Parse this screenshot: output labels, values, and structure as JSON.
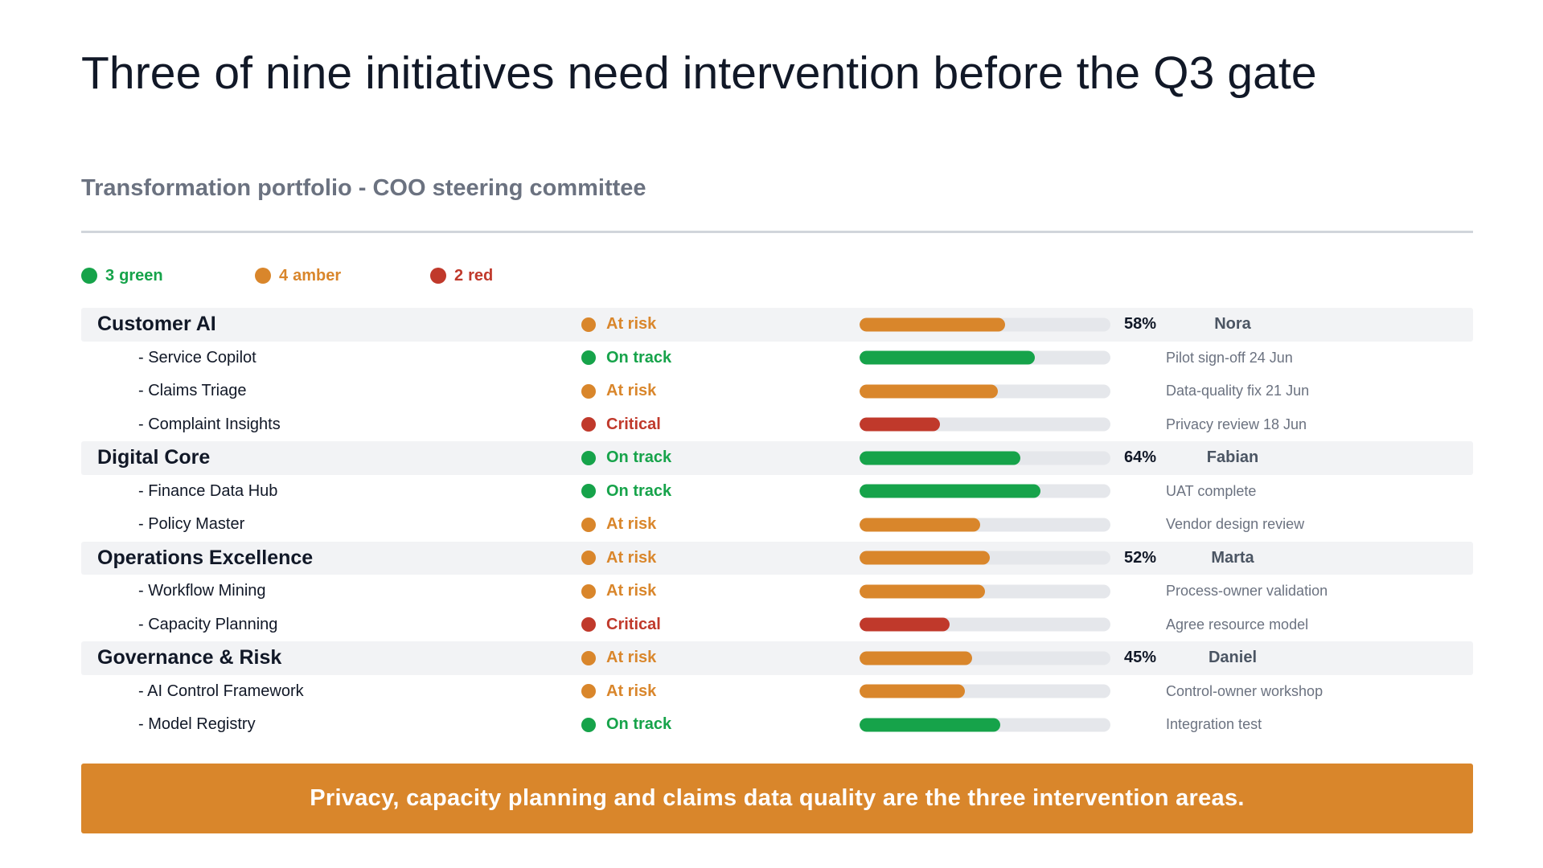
{
  "title": "Three of nine initiatives need intervention before the Q3 gate",
  "subtitle": "Transformation portfolio - COO steering committee",
  "colors": {
    "green": "#16a34a",
    "amber": "#d9862b",
    "red": "#c0392b",
    "track": "#e5e7eb"
  },
  "legend": [
    {
      "count": "3",
      "label": "green",
      "status": "green"
    },
    {
      "count": "4",
      "label": "amber",
      "status": "amber"
    },
    {
      "count": "2",
      "label": "red",
      "status": "red"
    }
  ],
  "rows": [
    {
      "type": "group",
      "name": "Customer AI",
      "status": "At risk",
      "rag": "amber",
      "progress": 0.58,
      "percent": "58%",
      "owner": "Nora"
    },
    {
      "type": "child",
      "name": "- Service Copilot",
      "status": "On track",
      "rag": "green",
      "progress": 0.7,
      "note": "Pilot sign-off 24 Jun"
    },
    {
      "type": "child",
      "name": "- Claims Triage",
      "status": "At risk",
      "rag": "amber",
      "progress": 0.55,
      "note": "Data-quality fix 21 Jun"
    },
    {
      "type": "child",
      "name": "- Complaint Insights",
      "status": "Critical",
      "rag": "red",
      "progress": 0.32,
      "note": "Privacy review 18 Jun"
    },
    {
      "type": "group",
      "name": "Digital Core",
      "status": "On track",
      "rag": "green",
      "progress": 0.64,
      "percent": "64%",
      "owner": "Fabian"
    },
    {
      "type": "child",
      "name": "- Finance Data Hub",
      "status": "On track",
      "rag": "green",
      "progress": 0.72,
      "note": "UAT complete"
    },
    {
      "type": "child",
      "name": "- Policy Master",
      "status": "At risk",
      "rag": "amber",
      "progress": 0.48,
      "note": "Vendor design review"
    },
    {
      "type": "group",
      "name": "Operations Excellence",
      "status": "At risk",
      "rag": "amber",
      "progress": 0.52,
      "percent": "52%",
      "owner": "Marta"
    },
    {
      "type": "child",
      "name": "- Workflow Mining",
      "status": "At risk",
      "rag": "amber",
      "progress": 0.5,
      "note": "Process-owner validation"
    },
    {
      "type": "child",
      "name": "- Capacity Planning",
      "status": "Critical",
      "rag": "red",
      "progress": 0.36,
      "note": "Agree resource model"
    },
    {
      "type": "group",
      "name": "Governance & Risk",
      "status": "At risk",
      "rag": "amber",
      "progress": 0.45,
      "percent": "45%",
      "owner": "Daniel"
    },
    {
      "type": "child",
      "name": "- AI Control Framework",
      "status": "At risk",
      "rag": "amber",
      "progress": 0.42,
      "note": "Control-owner workshop"
    },
    {
      "type": "child",
      "name": "- Model Registry",
      "status": "On track",
      "rag": "green",
      "progress": 0.56,
      "note": "Integration test"
    }
  ],
  "callout": "Privacy, capacity planning and claims data quality are the three intervention areas."
}
